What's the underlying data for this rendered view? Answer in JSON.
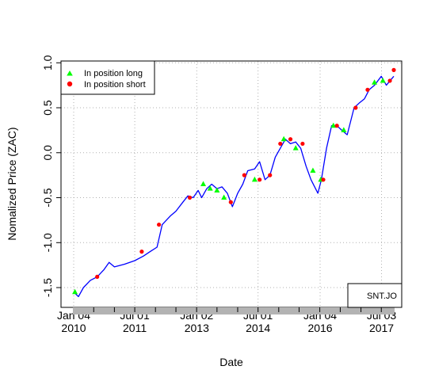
{
  "chart_data": {
    "type": "line",
    "xlabel": "Date",
    "ylabel": "Nomalized Price (ZAC)",
    "symbol": "SNT.JO",
    "x_range": [
      "2010-01-04",
      "2017-10-20"
    ],
    "ylim": [
      -1.72,
      1.02
    ],
    "y_ticks": [
      -1.5,
      -1.0,
      -0.5,
      0.0,
      0.5,
      1.0
    ],
    "y_tick_labels": [
      "-1.5",
      "-1.0",
      "-0.5",
      "0.0",
      "0.5",
      "1.0"
    ],
    "x_ticks": [
      {
        "date": "2010-01-04",
        "line1": "Jan 04",
        "line2": "2010"
      },
      {
        "date": "2011-07-01",
        "line1": "Jul 01",
        "line2": "2011"
      },
      {
        "date": "2013-01-02",
        "line1": "Jan 02",
        "line2": "2013"
      },
      {
        "date": "2014-07-01",
        "line1": "Jul 01",
        "line2": "2014"
      },
      {
        "date": "2016-01-04",
        "line1": "Jan 04",
        "line2": "2016"
      },
      {
        "date": "2017-07-03",
        "line1": "Jul 03",
        "line2": "2017"
      }
    ],
    "grid": true,
    "legend_position": "top-left",
    "series": [
      {
        "name": "price",
        "color": "#0000ff",
        "points": [
          [
            "2010-01-04",
            -1.55
          ],
          [
            "2010-02-15",
            -1.6
          ],
          [
            "2010-04-01",
            -1.5
          ],
          [
            "2010-06-01",
            -1.42
          ],
          [
            "2010-08-01",
            -1.38
          ],
          [
            "2010-10-01",
            -1.3
          ],
          [
            "2010-11-15",
            -1.22
          ],
          [
            "2011-01-01",
            -1.27
          ],
          [
            "2011-04-01",
            -1.24
          ],
          [
            "2011-07-01",
            -1.2
          ],
          [
            "2011-09-15",
            -1.15
          ],
          [
            "2011-11-15",
            -1.1
          ],
          [
            "2012-01-15",
            -1.05
          ],
          [
            "2012-03-01",
            -0.8
          ],
          [
            "2012-05-15",
            -0.7
          ],
          [
            "2012-07-01",
            -0.65
          ],
          [
            "2012-09-01",
            -0.55
          ],
          [
            "2012-10-15",
            -0.48
          ],
          [
            "2012-12-01",
            -0.5
          ],
          [
            "2013-01-15",
            -0.42
          ],
          [
            "2013-02-15",
            -0.5
          ],
          [
            "2013-04-01",
            -0.4
          ],
          [
            "2013-05-15",
            -0.35
          ],
          [
            "2013-07-01",
            -0.4
          ],
          [
            "2013-08-15",
            -0.38
          ],
          [
            "2013-10-01",
            -0.45
          ],
          [
            "2013-11-15",
            -0.6
          ],
          [
            "2014-01-01",
            -0.45
          ],
          [
            "2014-02-15",
            -0.35
          ],
          [
            "2014-04-01",
            -0.2
          ],
          [
            "2014-06-01",
            -0.18
          ],
          [
            "2014-07-15",
            -0.1
          ],
          [
            "2014-09-01",
            -0.3
          ],
          [
            "2014-10-15",
            -0.25
          ],
          [
            "2014-12-01",
            -0.05
          ],
          [
            "2015-01-15",
            0.05
          ],
          [
            "2015-03-01",
            0.15
          ],
          [
            "2015-04-15",
            0.1
          ],
          [
            "2015-06-01",
            0.12
          ],
          [
            "2015-07-15",
            0.05
          ],
          [
            "2015-09-01",
            -0.15
          ],
          [
            "2015-10-15",
            -0.3
          ],
          [
            "2015-12-15",
            -0.45
          ],
          [
            "2016-01-15",
            -0.3
          ],
          [
            "2016-03-01",
            0.05
          ],
          [
            "2016-04-15",
            0.3
          ],
          [
            "2016-06-01",
            0.3
          ],
          [
            "2016-07-15",
            0.25
          ],
          [
            "2016-09-01",
            0.2
          ],
          [
            "2016-11-01",
            0.5
          ],
          [
            "2016-12-15",
            0.55
          ],
          [
            "2017-02-01",
            0.6
          ],
          [
            "2017-03-15",
            0.7
          ],
          [
            "2017-05-01",
            0.75
          ],
          [
            "2017-07-01",
            0.85
          ],
          [
            "2017-08-15",
            0.75
          ],
          [
            "2017-10-20",
            0.85
          ]
        ]
      }
    ],
    "markers": [
      {
        "name": "In position long",
        "shape": "triangle",
        "color": "#00ff00",
        "points": [
          [
            "2010-01-15",
            -1.55
          ],
          [
            "2013-03-01",
            -0.35
          ],
          [
            "2013-05-01",
            -0.4
          ],
          [
            "2013-07-01",
            -0.42
          ],
          [
            "2013-09-01",
            -0.5
          ],
          [
            "2014-06-01",
            -0.3
          ],
          [
            "2015-02-15",
            0.15
          ],
          [
            "2015-06-01",
            0.05
          ],
          [
            "2015-11-01",
            -0.2
          ],
          [
            "2016-01-10",
            -0.3
          ],
          [
            "2016-05-01",
            0.3
          ],
          [
            "2016-08-01",
            0.25
          ],
          [
            "2017-05-01",
            0.78
          ],
          [
            "2017-07-15",
            0.8
          ]
        ]
      },
      {
        "name": "In position short",
        "shape": "circle",
        "color": "#ff0000",
        "points": [
          [
            "2010-08-01",
            -1.38
          ],
          [
            "2011-09-01",
            -1.1
          ],
          [
            "2012-02-01",
            -0.8
          ],
          [
            "2012-11-01",
            -0.5
          ],
          [
            "2013-11-01",
            -0.55
          ],
          [
            "2014-03-01",
            -0.25
          ],
          [
            "2014-07-15",
            -0.3
          ],
          [
            "2014-10-15",
            -0.25
          ],
          [
            "2015-01-15",
            0.1
          ],
          [
            "2015-04-15",
            0.15
          ],
          [
            "2015-08-01",
            0.1
          ],
          [
            "2016-02-01",
            -0.3
          ],
          [
            "2016-06-01",
            0.3
          ],
          [
            "2016-11-15",
            0.5
          ],
          [
            "2017-03-01",
            0.7
          ],
          [
            "2017-09-15",
            0.8
          ],
          [
            "2017-10-20",
            0.92
          ]
        ]
      }
    ]
  }
}
